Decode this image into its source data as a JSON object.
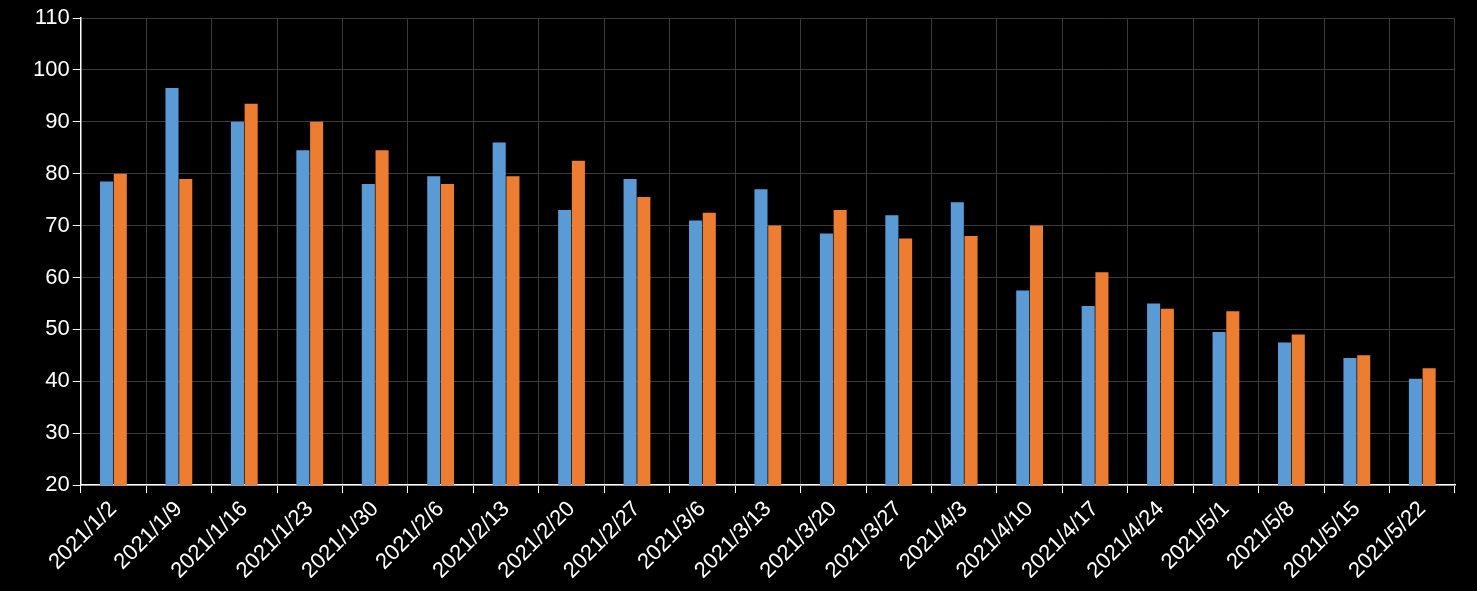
{
  "chart_data": {
    "type": "bar",
    "categories": [
      "2021/1/2",
      "2021/1/9",
      "2021/1/16",
      "2021/1/23",
      "2021/1/30",
      "2021/2/6",
      "2021/2/13",
      "2021/2/20",
      "2021/2/27",
      "2021/3/6",
      "2021/3/13",
      "2021/3/20",
      "2021/3/27",
      "2021/4/3",
      "2021/4/10",
      "2021/4/17",
      "2021/4/24",
      "2021/5/1",
      "2021/5/8",
      "2021/5/15",
      "2021/5/22"
    ],
    "series": [
      {
        "color": "#5b9bd5",
        "values": [
          78.5,
          96.5,
          90,
          84.5,
          78,
          79.5,
          86,
          73,
          79,
          71,
          77,
          68.5,
          72,
          74.5,
          57.5,
          54.5,
          55,
          49.5,
          47.5,
          44.5,
          40.5
        ]
      },
      {
        "color": "#ed7d31",
        "values": [
          80,
          79,
          93.5,
          90,
          84.5,
          78,
          79.5,
          82.5,
          75.5,
          72.5,
          70,
          73,
          67.5,
          68,
          70,
          61,
          54,
          53.5,
          49,
          45,
          42.5
        ]
      }
    ],
    "ylim": [
      20,
      110
    ],
    "yticks": [
      20,
      30,
      40,
      50,
      60,
      70,
      80,
      90,
      100,
      110
    ],
    "grid": true
  }
}
